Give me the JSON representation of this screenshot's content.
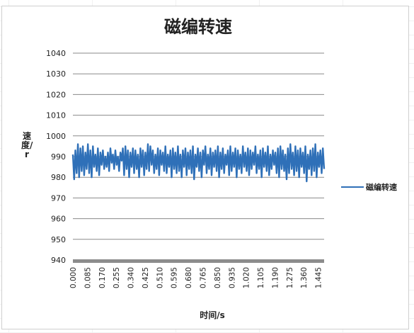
{
  "chart_data": {
    "type": "line",
    "title": "磁编转速",
    "ylabel": "速度/r",
    "xlabel": "时间/s",
    "ylim": [
      940,
      1040
    ],
    "yticks": [
      940,
      950,
      960,
      970,
      980,
      990,
      1000,
      1010,
      1020,
      1030,
      1040
    ],
    "xtick_labels": [
      "0.000",
      "0.085",
      "0.170",
      "0.255",
      "0.340",
      "0.425",
      "0.510",
      "0.595",
      "0.680",
      "0.765",
      "0.850",
      "0.935",
      "1.020",
      "1.105",
      "1.190",
      "1.275",
      "1.360",
      "1.445"
    ],
    "x_start": 0.0,
    "x_end": 1.48,
    "grid": true,
    "legend_position": "right",
    "series": [
      {
        "name": "磁编转速",
        "color": "#2f70b8",
        "values": [
          991,
          979,
          993,
          982,
          996,
          980,
          994,
          983,
          995,
          981,
          992,
          984,
          996,
          982,
          993,
          980,
          995,
          985,
          991,
          983,
          994,
          981,
          992,
          986,
          993,
          984,
          990,
          985,
          992,
          983,
          994,
          987,
          991,
          984,
          993,
          986,
          990,
          983,
          992,
          988,
          994,
          981,
          995,
          984,
          993,
          980,
          992,
          985,
          994,
          982,
          993,
          984,
          991,
          980,
          994,
          985,
          993,
          981,
          992,
          984,
          996,
          983,
          995,
          986,
          993,
          982,
          991,
          984,
          994,
          981,
          993,
          986,
          992,
          983,
          995,
          982,
          991,
          985,
          993,
          980,
          994,
          984,
          992,
          982,
          995,
          983,
          991,
          980,
          993,
          985,
          994,
          981,
          992,
          984,
          993,
          982,
          995,
          979,
          991,
          985,
          994,
          983,
          992,
          980,
          993,
          986,
          995,
          982,
          991,
          984,
          994,
          981,
          992,
          985,
          993,
          983,
          995,
          980,
          992,
          984,
          994,
          982,
          991,
          986,
          993,
          981,
          995,
          983,
          992,
          985,
          994,
          980,
          993,
          984,
          991,
          982,
          995,
          985,
          992,
          983,
          994,
          981,
          993,
          984,
          992,
          986,
          995,
          982,
          991,
          984,
          993,
          980,
          994,
          985,
          992,
          983,
          995,
          981,
          991,
          984,
          993,
          986,
          992,
          982,
          994,
          980,
          995,
          984,
          993,
          983,
          991,
          979,
          994,
          982,
          996,
          984,
          992,
          981,
          995,
          983,
          993,
          980,
          994,
          985,
          992,
          982,
          995,
          978,
          991,
          984,
          993,
          981,
          994,
          983,
          996,
          980,
          992,
          985,
          993,
          982,
          994,
          984
        ]
      }
    ]
  }
}
